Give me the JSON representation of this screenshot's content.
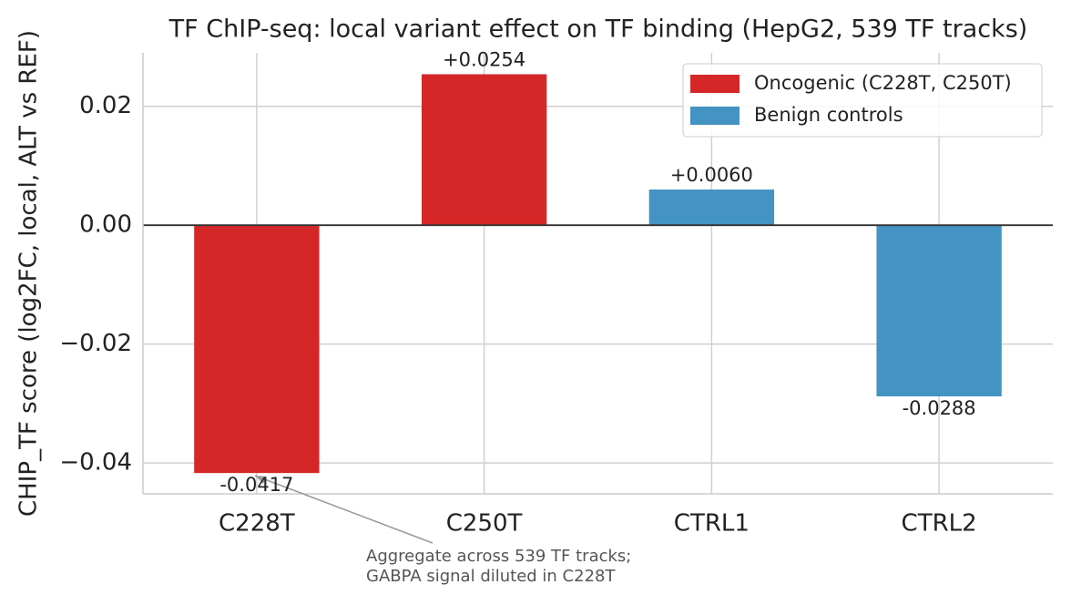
{
  "chart_data": {
    "type": "bar",
    "title": "TF ChIP-seq: local variant effect on TF binding (HepG2, 539 TF tracks)",
    "y_label": "CHIP_TF score (log2FC, local, ALT vs REF)",
    "categories": [
      "C228T",
      "C250T",
      "CTRL1",
      "CTRL2"
    ],
    "series": [
      {
        "name": "Oncogenic (C228T, C250T)",
        "color": "#d62728",
        "values": [
          -0.0417,
          0.0254,
          null,
          null
        ],
        "value_labels": [
          "-0.0417",
          "+0.0254",
          null,
          null
        ]
      },
      {
        "name": "Benign controls",
        "color": "#4393c3",
        "values": [
          null,
          null,
          0.006,
          -0.0288
        ],
        "value_labels": [
          null,
          null,
          "+0.0060",
          "-0.0288"
        ]
      }
    ],
    "ylim": [
      -0.0452,
      0.029
    ],
    "yticks": [
      {
        "value": -0.04,
        "label": "−0.04"
      },
      {
        "value": -0.02,
        "label": "−0.02"
      },
      {
        "value": 0,
        "label": "0.00"
      },
      {
        "value": 0.02,
        "label": "0.02"
      }
    ],
    "grid": true,
    "legend": "upper right",
    "annotation": [
      "Aggregate across 539 TF tracks;",
      "GABPA signal diluted in C228T"
    ]
  }
}
